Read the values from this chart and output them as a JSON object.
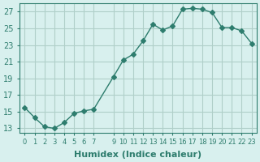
{
  "x": [
    0,
    1,
    2,
    3,
    4,
    5,
    6,
    7,
    9,
    10,
    11,
    12,
    13,
    14,
    15,
    16,
    17,
    18,
    19,
    20,
    21,
    22,
    23
  ],
  "y": [
    15.5,
    14.3,
    13.2,
    13.0,
    13.7,
    14.8,
    15.1,
    15.3,
    19.2,
    21.2,
    21.9,
    23.5,
    25.5,
    24.8,
    25.3,
    27.3,
    27.4,
    27.3,
    26.9,
    25.1,
    25.1,
    24.7,
    23.2
  ],
  "line_color": "#2e7d6e",
  "marker": "D",
  "marker_size": 3,
  "bg_color": "#d8f0ee",
  "grid_color": "#b0cfc9",
  "xlabel": "Humidex (Indice chaleur)",
  "ylabel_ticks": [
    13,
    15,
    17,
    19,
    21,
    23,
    25,
    27
  ],
  "xtick_labels": [
    "0",
    "1",
    "2",
    "3",
    "4",
    "5",
    "6",
    "7",
    "9",
    "10",
    "11",
    "12",
    "13",
    "14",
    "15",
    "16",
    "17",
    "18",
    "19",
    "20",
    "21",
    "22",
    "23"
  ],
  "ylim": [
    12.5,
    28.0
  ],
  "xlim": [
    -0.5,
    23.5
  ],
  "tick_color": "#2e7d6e",
  "label_fontsize": 8,
  "tick_fontsize": 7
}
